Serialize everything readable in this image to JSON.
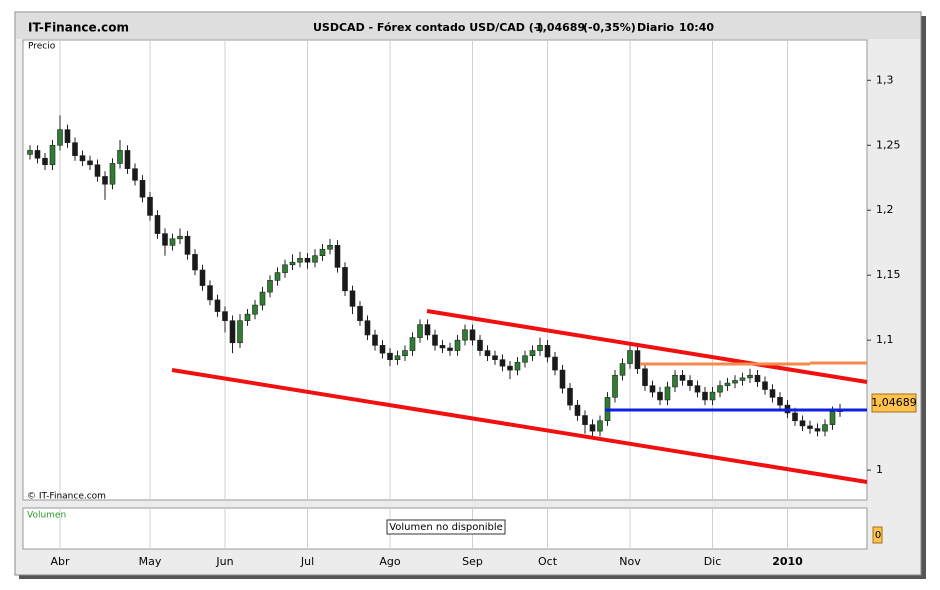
{
  "header": {
    "site": "IT-Finance.com",
    "symbol": "USDCAD - Fórex contado USD/CAD (-)",
    "price": "1,04689",
    "change": "(-0,35%)",
    "period": "Diario",
    "time": "10:40"
  },
  "chart_data": {
    "type": "candlestick",
    "panel_label": "Precio",
    "copyright": "© IT-Finance.com",
    "up_color": "#2f7d32",
    "down_color": "#1a1a1a",
    "grid": "x",
    "ylim": [
      0.977,
      1.331
    ],
    "yticks": [
      {
        "value": 1.3,
        "label": "1,3"
      },
      {
        "value": 1.25,
        "label": "1,25"
      },
      {
        "value": 1.2,
        "label": "1,2"
      },
      {
        "value": 1.15,
        "label": "1,15"
      },
      {
        "value": 1.1,
        "label": "1,1"
      },
      1
    ],
    "categories": [
      null,
      null,
      null,
      null,
      "Abr",
      null,
      null,
      null,
      null,
      null,
      null,
      null,
      null,
      null,
      null,
      null,
      "May",
      null,
      null,
      null,
      null,
      null,
      null,
      null,
      null,
      null,
      "Jun",
      null,
      null,
      null,
      null,
      null,
      null,
      null,
      null,
      null,
      null,
      "Jul",
      null,
      null,
      null,
      null,
      null,
      null,
      null,
      null,
      null,
      null,
      "Ago",
      null,
      null,
      null,
      null,
      null,
      null,
      null,
      null,
      null,
      null,
      "Sep",
      null,
      null,
      null,
      null,
      null,
      null,
      null,
      null,
      null,
      "Oct",
      null,
      null,
      null,
      null,
      null,
      null,
      null,
      null,
      null,
      null,
      "Nov",
      null,
      null,
      null,
      null,
      null,
      null,
      null,
      null,
      null,
      null,
      "Dic",
      null,
      null,
      null,
      null,
      null,
      null,
      null,
      null,
      null,
      "2010",
      null,
      null,
      null,
      null,
      null,
      null,
      null
    ],
    "candles": [
      [
        1.243,
        1.25,
        1.239,
        1.246
      ],
      [
        1.246,
        1.25,
        1.236,
        1.24
      ],
      [
        1.24,
        1.244,
        1.231,
        1.235
      ],
      [
        1.235,
        1.254,
        1.231,
        1.25
      ],
      [
        1.25,
        1.273,
        1.246,
        1.262
      ],
      [
        1.262,
        1.266,
        1.248,
        1.252
      ],
      [
        1.252,
        1.256,
        1.238,
        1.242
      ],
      [
        1.242,
        1.246,
        1.234,
        1.238
      ],
      [
        1.238,
        1.242,
        1.231,
        1.235
      ],
      [
        1.235,
        1.239,
        1.222,
        1.226
      ],
      [
        1.226,
        1.23,
        1.208,
        1.22
      ],
      [
        1.22,
        1.24,
        1.216,
        1.236
      ],
      [
        1.236,
        1.254,
        1.232,
        1.246
      ],
      [
        1.246,
        1.25,
        1.228,
        1.232
      ],
      [
        1.232,
        1.236,
        1.219,
        1.223
      ],
      [
        1.223,
        1.227,
        1.206,
        1.21
      ],
      [
        1.21,
        1.214,
        1.192,
        1.196
      ],
      [
        1.196,
        1.2,
        1.178,
        1.182
      ],
      [
        1.182,
        1.186,
        1.165,
        1.173
      ],
      [
        1.173,
        1.182,
        1.169,
        1.178
      ],
      [
        1.178,
        1.186,
        1.174,
        1.18
      ],
      [
        1.18,
        1.184,
        1.162,
        1.166
      ],
      [
        1.166,
        1.17,
        1.15,
        1.154
      ],
      [
        1.154,
        1.158,
        1.138,
        1.142
      ],
      [
        1.142,
        1.146,
        1.127,
        1.131
      ],
      [
        1.131,
        1.135,
        1.118,
        1.122
      ],
      [
        1.122,
        1.126,
        1.106,
        1.115
      ],
      [
        1.115,
        1.119,
        1.09,
        1.098
      ],
      [
        1.098,
        1.12,
        1.094,
        1.115
      ],
      [
        1.115,
        1.124,
        1.111,
        1.12
      ],
      [
        1.12,
        1.131,
        1.116,
        1.127
      ],
      [
        1.127,
        1.141,
        1.123,
        1.137
      ],
      [
        1.137,
        1.15,
        1.133,
        1.146
      ],
      [
        1.146,
        1.156,
        1.142,
        1.152
      ],
      [
        1.152,
        1.162,
        1.148,
        1.158
      ],
      [
        1.158,
        1.166,
        1.154,
        1.16
      ],
      [
        1.16,
        1.168,
        1.156,
        1.163
      ],
      [
        1.163,
        1.167,
        1.155,
        1.16
      ],
      [
        1.16,
        1.17,
        1.156,
        1.165
      ],
      [
        1.165,
        1.174,
        1.161,
        1.17
      ],
      [
        1.17,
        1.178,
        1.166,
        1.173
      ],
      [
        1.173,
        1.177,
        1.152,
        1.156
      ],
      [
        1.156,
        1.16,
        1.134,
        1.138
      ],
      [
        1.138,
        1.142,
        1.12,
        1.126
      ],
      [
        1.126,
        1.13,
        1.111,
        1.115
      ],
      [
        1.115,
        1.119,
        1.1,
        1.104
      ],
      [
        1.104,
        1.108,
        1.092,
        1.096
      ],
      [
        1.096,
        1.1,
        1.086,
        1.09
      ],
      [
        1.09,
        1.094,
        1.08,
        1.085
      ],
      [
        1.085,
        1.092,
        1.081,
        1.088
      ],
      [
        1.088,
        1.096,
        1.084,
        1.092
      ],
      [
        1.092,
        1.106,
        1.088,
        1.102
      ],
      [
        1.102,
        1.116,
        1.098,
        1.112
      ],
      [
        1.112,
        1.116,
        1.1,
        1.104
      ],
      [
        1.104,
        1.108,
        1.092,
        1.096
      ],
      [
        1.096,
        1.1,
        1.09,
        1.094
      ],
      [
        1.094,
        1.098,
        1.088,
        1.092
      ],
      [
        1.092,
        1.104,
        1.088,
        1.1
      ],
      [
        1.1,
        1.112,
        1.096,
        1.108
      ],
      [
        1.108,
        1.112,
        1.096,
        1.1
      ],
      [
        1.1,
        1.104,
        1.088,
        1.092
      ],
      [
        1.092,
        1.096,
        1.084,
        1.088
      ],
      [
        1.088,
        1.092,
        1.081,
        1.085
      ],
      [
        1.085,
        1.089,
        1.076,
        1.08
      ],
      [
        1.08,
        1.084,
        1.07,
        1.077
      ],
      [
        1.077,
        1.087,
        1.073,
        1.083
      ],
      [
        1.083,
        1.092,
        1.079,
        1.088
      ],
      [
        1.088,
        1.096,
        1.084,
        1.092
      ],
      [
        1.092,
        1.102,
        1.088,
        1.096
      ],
      [
        1.096,
        1.1,
        1.083,
        1.087
      ],
      [
        1.087,
        1.091,
        1.073,
        1.077
      ],
      [
        1.077,
        1.081,
        1.059,
        1.063
      ],
      [
        1.063,
        1.067,
        1.046,
        1.05
      ],
      [
        1.05,
        1.054,
        1.038,
        1.042
      ],
      [
        1.042,
        1.046,
        1.028,
        1.035
      ],
      [
        1.035,
        1.039,
        1.026,
        1.03
      ],
      [
        1.03,
        1.042,
        1.026,
        1.038
      ],
      [
        1.038,
        1.06,
        1.034,
        1.056
      ],
      [
        1.056,
        1.077,
        1.052,
        1.073
      ],
      [
        1.073,
        1.086,
        1.069,
        1.082
      ],
      [
        1.082,
        1.096,
        1.078,
        1.092
      ],
      [
        1.092,
        1.096,
        1.074,
        1.078
      ],
      [
        1.078,
        1.082,
        1.061,
        1.065
      ],
      [
        1.065,
        1.069,
        1.056,
        1.06
      ],
      [
        1.06,
        1.064,
        1.05,
        1.054
      ],
      [
        1.054,
        1.068,
        1.05,
        1.064
      ],
      [
        1.064,
        1.077,
        1.06,
        1.073
      ],
      [
        1.073,
        1.077,
        1.065,
        1.069
      ],
      [
        1.069,
        1.073,
        1.061,
        1.065
      ],
      [
        1.065,
        1.069,
        1.056,
        1.06
      ],
      [
        1.06,
        1.064,
        1.05,
        1.054
      ],
      [
        1.054,
        1.064,
        1.05,
        1.06
      ],
      [
        1.06,
        1.069,
        1.056,
        1.065
      ],
      [
        1.065,
        1.071,
        1.061,
        1.067
      ],
      [
        1.067,
        1.073,
        1.063,
        1.069
      ],
      [
        1.069,
        1.075,
        1.065,
        1.071
      ],
      [
        1.071,
        1.078,
        1.067,
        1.073
      ],
      [
        1.073,
        1.077,
        1.064,
        1.068
      ],
      [
        1.068,
        1.072,
        1.058,
        1.062
      ],
      [
        1.062,
        1.066,
        1.052,
        1.056
      ],
      [
        1.056,
        1.06,
        1.046,
        1.05
      ],
      [
        1.05,
        1.054,
        1.04,
        1.044
      ],
      [
        1.044,
        1.048,
        1.034,
        1.038
      ],
      [
        1.038,
        1.042,
        1.03,
        1.034
      ],
      [
        1.034,
        1.038,
        1.028,
        1.032
      ],
      [
        1.032,
        1.036,
        1.026,
        1.03
      ],
      [
        1.03,
        1.039,
        1.026,
        1.035
      ],
      [
        1.035,
        1.049,
        1.031,
        1.045
      ],
      [
        1.045,
        1.051,
        1.041,
        1.047
      ]
    ]
  },
  "volume_panel": {
    "label": "Volumen",
    "message": "Volumen no disponible",
    "axis_label": "0"
  }
}
